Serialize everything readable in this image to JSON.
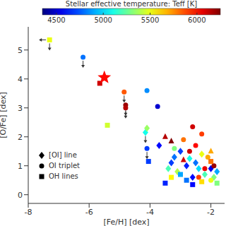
{
  "chart_data": {
    "type": "scatter",
    "x_label": "[Fe/H] [dex]",
    "y_label": "[O/Fe] [dex]",
    "xlim": [
      -8,
      -1.55
    ],
    "xticks": [
      -8,
      -6,
      -4,
      -2
    ],
    "ylim": [
      -0.3,
      5.8
    ],
    "yticks": [
      0,
      1,
      2,
      3,
      4,
      5
    ],
    "colorbar": {
      "label": "Stellar effective temperature: Teff [K]",
      "range": [
        4350,
        6250
      ],
      "ticks": [
        4500,
        5000,
        5500,
        6000
      ]
    },
    "series": [
      {
        "name": "[OI] line",
        "marker": "diamond",
        "x": [
          -4.15,
          -4.1,
          -3.7,
          -3.2,
          -3.0,
          -2.8,
          -2.7,
          -2.5,
          -2.4,
          -2.2,
          -2.0,
          -1.9,
          -2.6,
          -3.4,
          -3.1,
          -2.3,
          -1.8,
          -3.3
        ],
        "values": [
          2.15,
          2.3,
          1.7,
          1.3,
          1.5,
          1.0,
          1.25,
          1.1,
          0.9,
          0.7,
          0.9,
          0.6,
          0.6,
          0.9,
          0.8,
          1.4,
          0.8,
          1.1
        ],
        "teff": [
          5100,
          5350,
          4600,
          4800,
          4700,
          4650,
          5100,
          4800,
          5000,
          5200,
          4550,
          5300,
          4600,
          5200,
          5400,
          5500,
          4900,
          4700
        ],
        "upper_limit": [
          true,
          false,
          false,
          false,
          false,
          false,
          false,
          false,
          false,
          false,
          false,
          false,
          false,
          false,
          false,
          false,
          false,
          false
        ]
      },
      {
        "name": "OI triplet",
        "marker": "circle",
        "x": [
          -6.2,
          -4.85,
          -4.8,
          -4.8,
          -4.1,
          -3.75,
          -4.1,
          -2.6,
          -2.3,
          -2.9,
          -2.5,
          -2.7,
          -2.1,
          -1.9,
          -2.2,
          -2.4,
          -3.2,
          -2.0
        ],
        "values": [
          4.75,
          3.55,
          3.1,
          3.0,
          3.6,
          3.05,
          1.6,
          2.35,
          2.1,
          1.9,
          1.7,
          1.5,
          1.3,
          1.0,
          0.9,
          0.6,
          1.6,
          0.5
        ],
        "teff": [
          4800,
          5850,
          6200,
          6150,
          4850,
          4500,
          4700,
          6100,
          5900,
          5800,
          6000,
          6100,
          5700,
          6200,
          6050,
          5900,
          5300,
          5500
        ],
        "upper_limit": [
          true,
          true,
          true,
          true,
          false,
          false,
          true,
          false,
          false,
          false,
          false,
          false,
          false,
          false,
          false,
          false,
          false,
          false
        ]
      },
      {
        "name": "OH lines",
        "marker": "square",
        "x": [
          -7.3,
          -5.65,
          -5.4,
          -4.05,
          -3.5,
          -3.0,
          -2.6,
          -2.3,
          -2.0,
          -3.3,
          -2.8,
          -1.8
        ],
        "values": [
          5.35,
          3.85,
          2.4,
          1.15,
          0.4,
          0.7,
          0.35,
          0.45,
          1.15,
          0.6,
          0.5,
          0.4
        ],
        "teff": [
          5500,
          6100,
          5450,
          4700,
          4650,
          4900,
          4600,
          5600,
          5800,
          5550,
          4800,
          5300
        ],
        "upper_limit": [
          true,
          false,
          false,
          false,
          false,
          false,
          false,
          false,
          false,
          false,
          false,
          false
        ],
        "x_upper_limit": [
          true,
          false,
          false,
          false,
          false,
          false,
          false,
          false,
          false,
          false,
          false,
          false
        ]
      },
      {
        "marker": "triangle",
        "x": [
          -3.5,
          -3.3,
          -2.9,
          -2.0
        ],
        "values": [
          2.0,
          1.85,
          1.2,
          1.5
        ],
        "teff": [
          6150,
          6250,
          6100,
          5700
        ],
        "upper_limit": [
          false,
          false,
          false,
          false
        ]
      },
      {
        "marker": "star",
        "x": [
          -5.5
        ],
        "values": [
          4.05
        ],
        "teff": [
          6000
        ],
        "upper_limit": [
          false
        ]
      }
    ]
  }
}
